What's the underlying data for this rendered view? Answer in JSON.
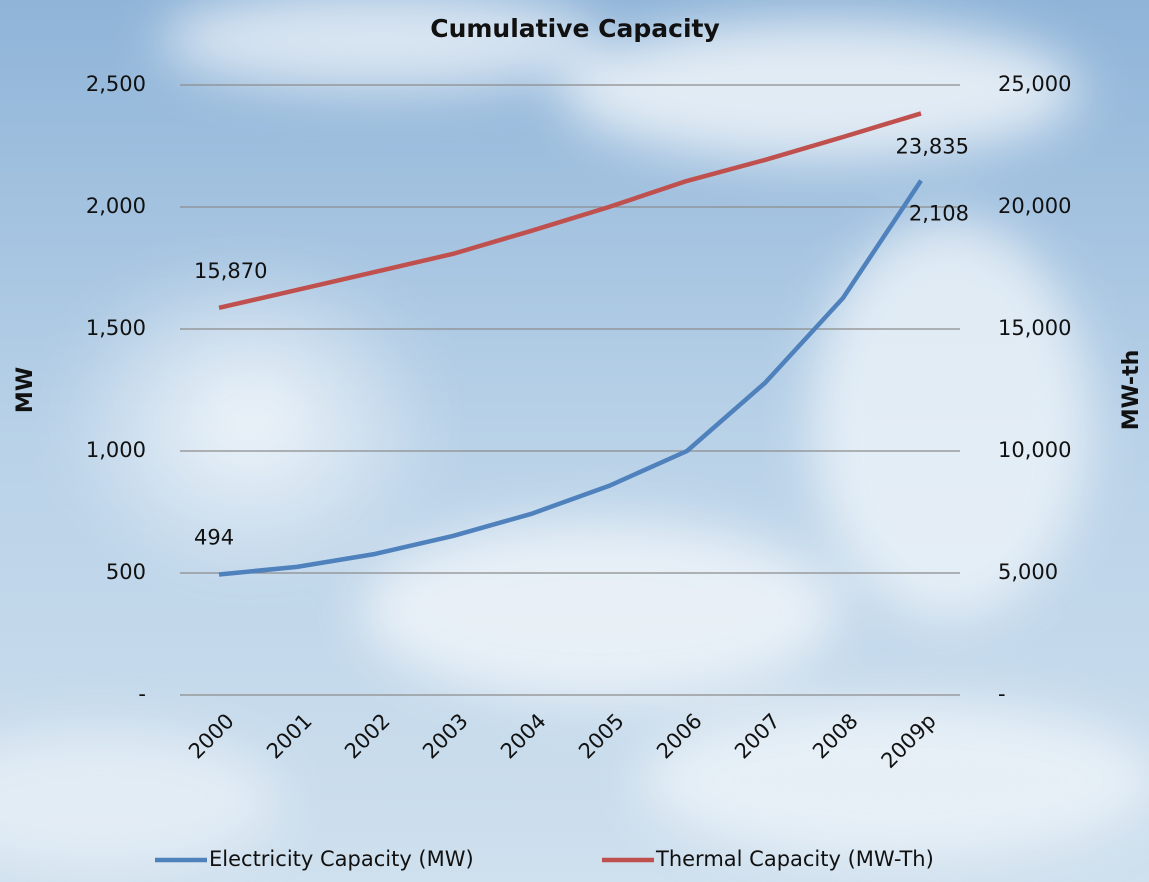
{
  "chart_data": {
    "type": "line",
    "title": "Cumulative Capacity",
    "y_label": "MW",
    "y2_label": "MW-th",
    "categories": [
      "2000",
      "2001",
      "2002",
      "2003",
      "2004",
      "2005",
      "2006",
      "2007",
      "2008",
      "2009p"
    ],
    "series": [
      {
        "name": "Electricity Capacity (MW)",
        "color": "#4f81bd",
        "values": [
          494,
          525,
          578,
          652,
          742,
          857,
          1000,
          1279,
          1627,
          2108
        ],
        "value_labels": [
          "494",
          null,
          null,
          null,
          null,
          null,
          null,
          null,
          null,
          "2,108"
        ]
      },
      {
        "name": "Thermal Capacity (MW-Th)",
        "color": "#c0504d",
        "axis": "y2",
        "values": [
          15870,
          16600,
          17340,
          18080,
          19020,
          20000,
          21070,
          21930,
          22870,
          23835
        ],
        "value_labels": [
          "15,870",
          null,
          null,
          null,
          null,
          null,
          null,
          null,
          null,
          "23,835"
        ]
      }
    ],
    "ylim": [
      0,
      2500
    ],
    "yticks": [
      {
        "value": 0,
        "label": "-"
      },
      500,
      {
        "value": 1000,
        "label": "1,000"
      },
      {
        "value": 1500,
        "label": "1,500"
      },
      {
        "value": 2000,
        "label": "2,000"
      },
      {
        "value": 2500,
        "label": "2,500"
      }
    ],
    "y2lim": [
      0,
      25000
    ],
    "y2ticks": [
      {
        "value": 0,
        "label": "-"
      },
      {
        "value": 5000,
        "label": "5,000"
      },
      {
        "value": 10000,
        "label": "10,000"
      },
      {
        "value": 15000,
        "label": "15,000"
      },
      {
        "value": 20000,
        "label": "20,000"
      },
      {
        "value": 25000,
        "label": "25,000"
      }
    ],
    "grid": true,
    "legend": "bottom"
  }
}
